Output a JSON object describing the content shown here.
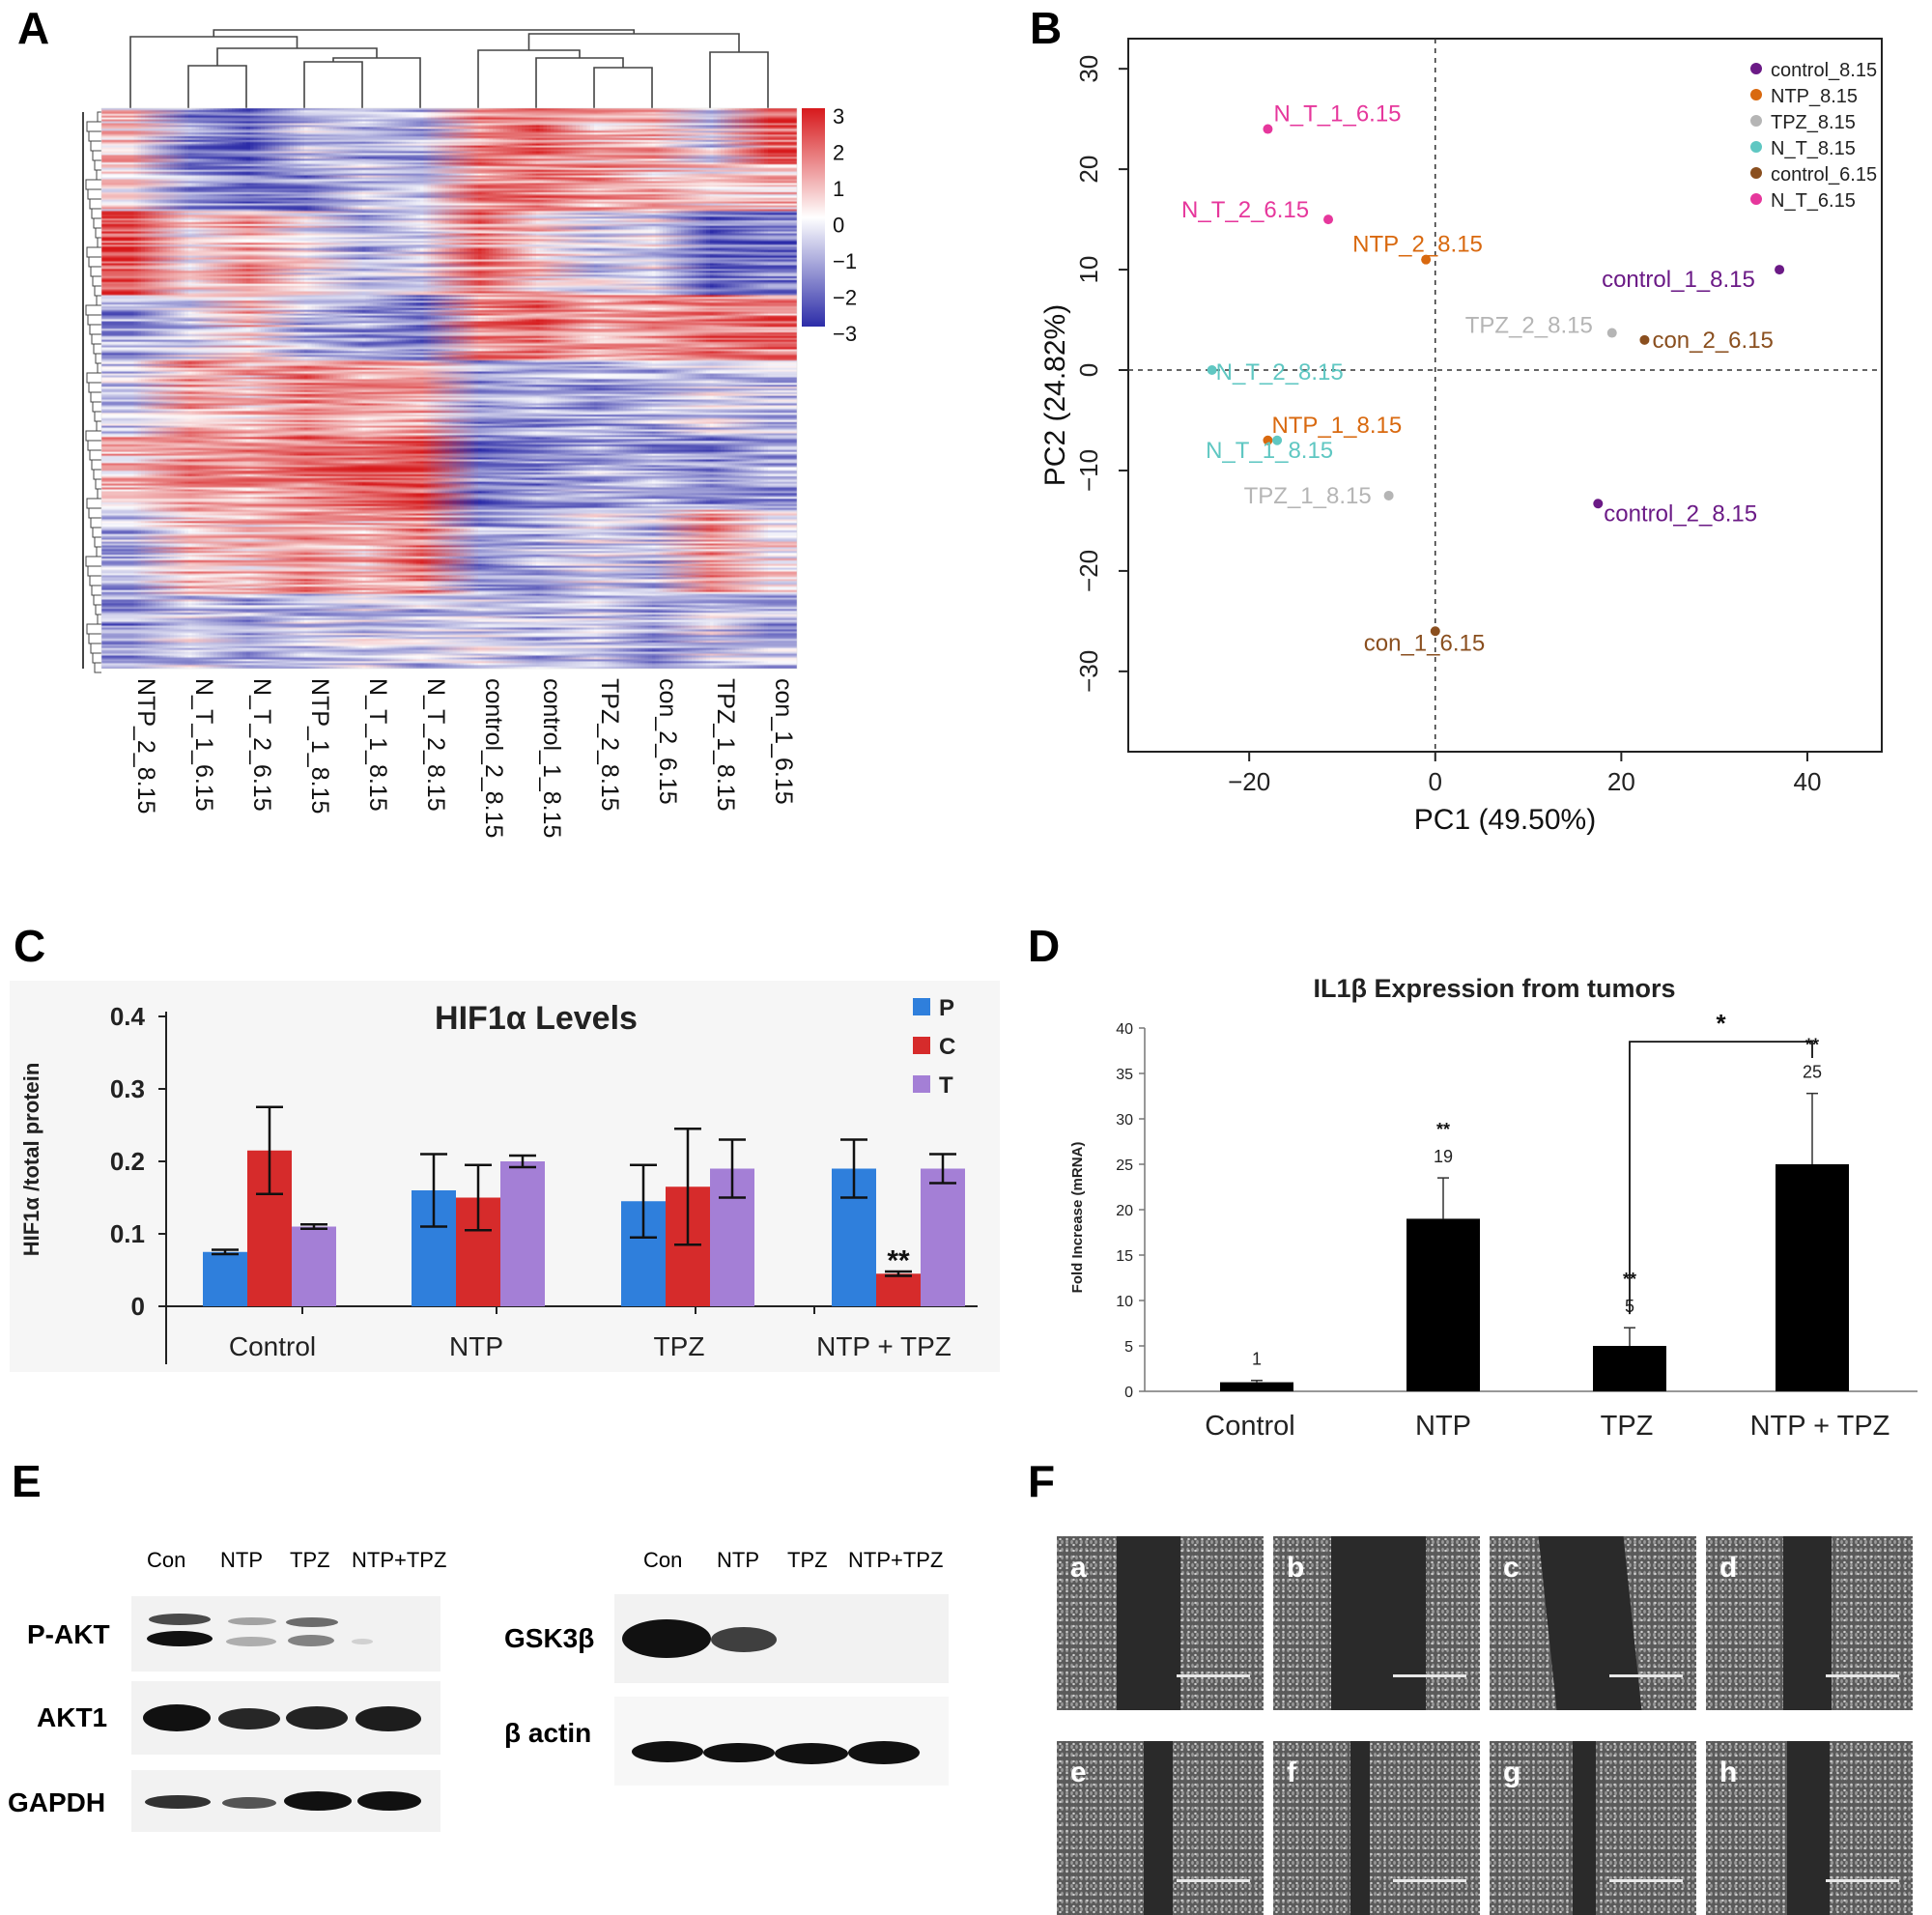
{
  "panels": {
    "A": "A",
    "B": "B",
    "C": "C",
    "D": "D",
    "E": "E",
    "F": "F"
  },
  "heatmap": {
    "samples": [
      "NTP_2_8.15",
      "N_T_1_6.15",
      "N_T_2_6.15",
      "NTP_1_8.15",
      "N_T_1_8.15",
      "N_T_2_8.15",
      "control_2_8.15",
      "control_1_8.15",
      "TPZ_2_8.15",
      "con_2_6.15",
      "TPZ_1_8.15",
      "con_1_6.15"
    ],
    "scale_ticks": [
      "3",
      "2",
      "1",
      "0",
      "−1",
      "−2",
      "−3"
    ],
    "colors": {
      "high": "#d7191c",
      "mid": "#ffffff",
      "low": "#2c2ca8"
    }
  },
  "chart_data": [
    {
      "type": "scatter",
      "panel": "B",
      "xlabel": "PC1 (49.50%)",
      "ylabel": "PC2 (24.82%)",
      "xlim": [
        -33,
        48
      ],
      "ylim": [
        -38,
        33
      ],
      "xticks": [
        -20,
        0,
        20,
        40
      ],
      "yticks": [
        30,
        20,
        10,
        0,
        -10,
        -20,
        -30
      ],
      "legend": [
        {
          "name": "control_8.15",
          "color": "#6b1a86"
        },
        {
          "name": "NTP_8.15",
          "color": "#d9690f"
        },
        {
          "name": "TPZ_8.15",
          "color": "#b5b5b5"
        },
        {
          "name": "N_T_8.15",
          "color": "#5fc7c2"
        },
        {
          "name": "control_6.15",
          "color": "#8a4f1f"
        },
        {
          "name": "N_T_6.15",
          "color": "#e6379c"
        }
      ],
      "legend_position": "top-right",
      "points": [
        {
          "label": "control_1_8.15",
          "x": 37,
          "y": 10,
          "group": 0
        },
        {
          "label": "control_2_8.15",
          "x": 17.5,
          "y": -13.3,
          "group": 0
        },
        {
          "label": "NTP_2_8.15",
          "x": -1,
          "y": 11,
          "group": 1
        },
        {
          "label": "NTP_1_8.15",
          "x": -18,
          "y": -7,
          "group": 1
        },
        {
          "label": "TPZ_2_8.15",
          "x": 19,
          "y": 3.7,
          "group": 2
        },
        {
          "label": "TPZ_1_8.15",
          "x": -5,
          "y": -12.5,
          "group": 2
        },
        {
          "label": "N_T_2_8.15",
          "x": -24,
          "y": 0,
          "group": 3
        },
        {
          "label": "N_T_1_8.15",
          "x": -17,
          "y": -7,
          "group": 3
        },
        {
          "label": "con_2_6.15",
          "x": 22.5,
          "y": 3,
          "group": 4
        },
        {
          "label": "con_1_6.15",
          "x": 0,
          "y": -26,
          "group": 4
        },
        {
          "label": "N_T_1_6.15",
          "x": -18,
          "y": 24,
          "group": 5
        },
        {
          "label": "N_T_2_6.15",
          "x": -11.5,
          "y": 15,
          "group": 5
        }
      ],
      "reference_lines": {
        "x": 0,
        "y": 0
      }
    },
    {
      "type": "bar",
      "panel": "C",
      "title": "HIF1α Levels",
      "ylabel": "HIF1α /total protein",
      "ylim": [
        0,
        0.4
      ],
      "yticks": [
        "0",
        "0.1",
        "0.2",
        "0.3",
        "0.4"
      ],
      "categories": [
        "Control",
        "NTP",
        "TPZ",
        "NTP + TPZ"
      ],
      "series": [
        {
          "name": "P",
          "color": "#2f7fdc",
          "values": [
            0.075,
            0.16,
            0.145,
            0.19
          ],
          "errors": [
            0.003,
            0.05,
            0.05,
            0.04
          ]
        },
        {
          "name": "C",
          "color": "#d62b2b",
          "values": [
            0.215,
            0.15,
            0.165,
            0.045
          ],
          "errors": [
            0.06,
            0.045,
            0.08,
            0.003
          ]
        },
        {
          "name": "T",
          "color": "#a47fd6",
          "values": [
            0.11,
            0.2,
            0.19,
            0.19
          ],
          "errors": [
            0.003,
            0.008,
            0.04,
            0.02
          ]
        }
      ],
      "annotations": [
        {
          "text": "**",
          "category": 3,
          "series": 1
        }
      ]
    },
    {
      "type": "bar",
      "panel": "D",
      "title": "IL1β Expression from tumors",
      "ylabel": "Fold Increase (mRNA)",
      "ylim": [
        0,
        40
      ],
      "yticks": [
        "0",
        "5",
        "10",
        "15",
        "20",
        "25",
        "30",
        "35",
        "40"
      ],
      "categories": [
        "Control",
        "NTP",
        "TPZ",
        "NTP + TPZ"
      ],
      "values": [
        1,
        19,
        5,
        25
      ],
      "errors": [
        0.2,
        4.5,
        2,
        7.8
      ],
      "value_labels": [
        "1",
        "19",
        "5",
        "25"
      ],
      "significance": [
        "",
        "**",
        "**",
        "**"
      ],
      "bracket": {
        "from": 2,
        "to": 3,
        "text": "*"
      }
    }
  ],
  "western": {
    "left": {
      "lanes": [
        "Con",
        "NTP",
        "TPZ",
        "NTP+TPZ"
      ],
      "rows": [
        "P-AKT",
        "AKT1",
        "GAPDH"
      ]
    },
    "right": {
      "lanes": [
        "Con",
        "NTP",
        "TPZ",
        "NTP+TPZ"
      ],
      "rows": [
        "GSK3β",
        "β actin"
      ]
    }
  },
  "micrographs": [
    "a",
    "b",
    "c",
    "d",
    "e",
    "f",
    "g",
    "h"
  ]
}
